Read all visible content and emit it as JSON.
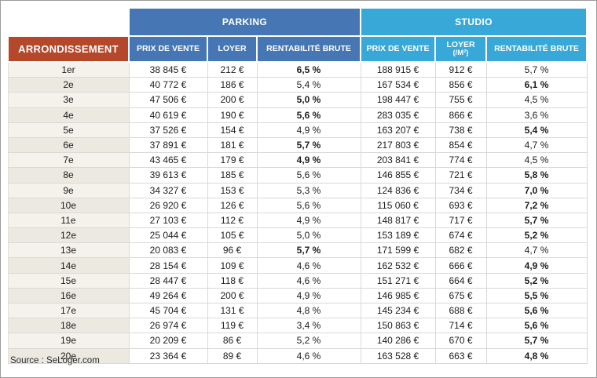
{
  "colors": {
    "arrondissement_header_bg": "#b5472a",
    "parking_header_bg": "#4677b4",
    "studio_header_bg": "#38a8d8",
    "row_beige_odd": "#f5f2ec",
    "row_beige_even": "#ece9e1"
  },
  "header": {
    "parking_group": "PARKING",
    "studio_group": "STUDIO",
    "arrondissement": "ARRONDISSEMENT",
    "parking_columns": [
      "PRIX DE VENTE",
      "LOYER",
      "RENTABILITÉ BRUTE"
    ],
    "studio_columns": [
      "PRIX DE VENTE",
      "LOYER",
      "RENTABILITÉ BRUTE"
    ],
    "studio_loyer_sublabel": "(/M²)"
  },
  "source": "Source : SeLoger.com",
  "chart_data": {
    "type": "table",
    "row_header": "ARRONDISSEMENT",
    "column_groups": [
      {
        "label": "PARKING",
        "columns": [
          "PRIX DE VENTE",
          "LOYER",
          "RENTABILITÉ BRUTE"
        ]
      },
      {
        "label": "STUDIO",
        "columns": [
          "PRIX DE VENTE",
          "LOYER (/M²)",
          "RENTABILITÉ BRUTE"
        ]
      }
    ],
    "bold_note": "bold rentabilité value marks the higher yield of the two for that arrondissement",
    "rows": [
      {
        "arrondissement": "1er",
        "parking_prix": "38 845 €",
        "parking_loyer": "212 €",
        "parking_rentabilite": "6,5 %",
        "parking_rentabilite_bold": true,
        "studio_prix": "188 915 €",
        "studio_loyer": "912 €",
        "studio_rentabilite": "5,7 %",
        "studio_rentabilite_bold": false
      },
      {
        "arrondissement": "2e",
        "parking_prix": "40 772 €",
        "parking_loyer": "186 €",
        "parking_rentabilite": "5,4 %",
        "parking_rentabilite_bold": false,
        "studio_prix": "167 534 €",
        "studio_loyer": "856 €",
        "studio_rentabilite": "6,1 %",
        "studio_rentabilite_bold": true
      },
      {
        "arrondissement": "3e",
        "parking_prix": "47 506 €",
        "parking_loyer": "200 €",
        "parking_rentabilite": "5,0 %",
        "parking_rentabilite_bold": true,
        "studio_prix": "198 447 €",
        "studio_loyer": "755 €",
        "studio_rentabilite": "4,5 %",
        "studio_rentabilite_bold": false
      },
      {
        "arrondissement": "4e",
        "parking_prix": "40 619 €",
        "parking_loyer": "190 €",
        "parking_rentabilite": "5,6 %",
        "parking_rentabilite_bold": true,
        "studio_prix": "283 035 €",
        "studio_loyer": "866 €",
        "studio_rentabilite": "3,6 %",
        "studio_rentabilite_bold": false
      },
      {
        "arrondissement": "5e",
        "parking_prix": "37 526 €",
        "parking_loyer": "154 €",
        "parking_rentabilite": "4,9 %",
        "parking_rentabilite_bold": false,
        "studio_prix": "163 207 €",
        "studio_loyer": "738 €",
        "studio_rentabilite": "5,4 %",
        "studio_rentabilite_bold": true
      },
      {
        "arrondissement": "6e",
        "parking_prix": "37 891 €",
        "parking_loyer": "181 €",
        "parking_rentabilite": "5,7 %",
        "parking_rentabilite_bold": true,
        "studio_prix": "217 803 €",
        "studio_loyer": "854 €",
        "studio_rentabilite": "4,7 %",
        "studio_rentabilite_bold": false
      },
      {
        "arrondissement": "7e",
        "parking_prix": "43 465 €",
        "parking_loyer": "179 €",
        "parking_rentabilite": "4,9 %",
        "parking_rentabilite_bold": true,
        "studio_prix": "203 841 €",
        "studio_loyer": "774 €",
        "studio_rentabilite": "4,5 %",
        "studio_rentabilite_bold": false
      },
      {
        "arrondissement": "8e",
        "parking_prix": "39 613 €",
        "parking_loyer": "185 €",
        "parking_rentabilite": "5,6 %",
        "parking_rentabilite_bold": false,
        "studio_prix": "146 855 €",
        "studio_loyer": "721 €",
        "studio_rentabilite": "5,8 %",
        "studio_rentabilite_bold": true
      },
      {
        "arrondissement": "9e",
        "parking_prix": "34 327 €",
        "parking_loyer": "153 €",
        "parking_rentabilite": "5,3 %",
        "parking_rentabilite_bold": false,
        "studio_prix": "124 836 €",
        "studio_loyer": "734 €",
        "studio_rentabilite": "7,0 %",
        "studio_rentabilite_bold": true
      },
      {
        "arrondissement": "10e",
        "parking_prix": "26 920 €",
        "parking_loyer": "126 €",
        "parking_rentabilite": "5,6 %",
        "parking_rentabilite_bold": false,
        "studio_prix": "115 060 €",
        "studio_loyer": "693 €",
        "studio_rentabilite": "7,2 %",
        "studio_rentabilite_bold": true
      },
      {
        "arrondissement": "11e",
        "parking_prix": "27 103 €",
        "parking_loyer": "112 €",
        "parking_rentabilite": "4,9 %",
        "parking_rentabilite_bold": false,
        "studio_prix": "148 817 €",
        "studio_loyer": "717 €",
        "studio_rentabilite": "5,7 %",
        "studio_rentabilite_bold": true
      },
      {
        "arrondissement": "12e",
        "parking_prix": "25 044 €",
        "parking_loyer": "105 €",
        "parking_rentabilite": "5,0 %",
        "parking_rentabilite_bold": false,
        "studio_prix": "153 189 €",
        "studio_loyer": "674 €",
        "studio_rentabilite": "5,2 %",
        "studio_rentabilite_bold": true
      },
      {
        "arrondissement": "13e",
        "parking_prix": "20 083 €",
        "parking_loyer": "96 €",
        "parking_rentabilite": "5,7 %",
        "parking_rentabilite_bold": true,
        "studio_prix": "171 599 €",
        "studio_loyer": "682 €",
        "studio_rentabilite": "4,7 %",
        "studio_rentabilite_bold": false
      },
      {
        "arrondissement": "14e",
        "parking_prix": "28 154 €",
        "parking_loyer": "109 €",
        "parking_rentabilite": "4,6 %",
        "parking_rentabilite_bold": false,
        "studio_prix": "162 532 €",
        "studio_loyer": "666 €",
        "studio_rentabilite": "4,9 %",
        "studio_rentabilite_bold": true
      },
      {
        "arrondissement": "15e",
        "parking_prix": "28 447 €",
        "parking_loyer": "118 €",
        "parking_rentabilite": "4,6 %",
        "parking_rentabilite_bold": false,
        "studio_prix": "151 271 €",
        "studio_loyer": "664 €",
        "studio_rentabilite": "5,2 %",
        "studio_rentabilite_bold": true
      },
      {
        "arrondissement": "16e",
        "parking_prix": "49 264 €",
        "parking_loyer": "200 €",
        "parking_rentabilite": "4,9 %",
        "parking_rentabilite_bold": false,
        "studio_prix": "146 985 €",
        "studio_loyer": "675 €",
        "studio_rentabilite": "5,5 %",
        "studio_rentabilite_bold": true
      },
      {
        "arrondissement": "17e",
        "parking_prix": "45 704 €",
        "parking_loyer": "131 €",
        "parking_rentabilite": "4,8 %",
        "parking_rentabilite_bold": false,
        "studio_prix": "145 234 €",
        "studio_loyer": "688 €",
        "studio_rentabilite": "5,6 %",
        "studio_rentabilite_bold": true
      },
      {
        "arrondissement": "18e",
        "parking_prix": "26 974 €",
        "parking_loyer": "119 €",
        "parking_rentabilite": "3,4 %",
        "parking_rentabilite_bold": false,
        "studio_prix": "150 863 €",
        "studio_loyer": "714 €",
        "studio_rentabilite": "5,6 %",
        "studio_rentabilite_bold": true
      },
      {
        "arrondissement": "19e",
        "parking_prix": "20 209 €",
        "parking_loyer": "86 €",
        "parking_rentabilite": "5,2 %",
        "parking_rentabilite_bold": false,
        "studio_prix": "140 286 €",
        "studio_loyer": "670 €",
        "studio_rentabilite": "5,7 %",
        "studio_rentabilite_bold": true
      },
      {
        "arrondissement": "20e",
        "parking_prix": "23 364 €",
        "parking_loyer": "89 €",
        "parking_rentabilite": "4,6 %",
        "parking_rentabilite_bold": false,
        "studio_prix": "163 528 €",
        "studio_loyer": "663 €",
        "studio_rentabilite": "4,8 %",
        "studio_rentabilite_bold": true
      }
    ]
  }
}
